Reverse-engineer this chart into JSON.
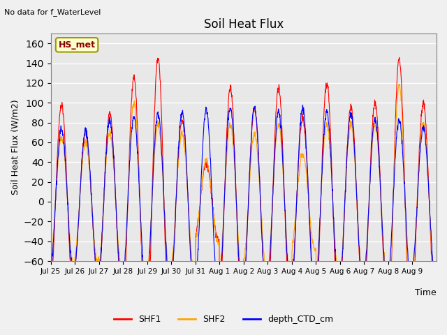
{
  "title": "Soil Heat Flux",
  "xlabel": "Time",
  "ylabel": "Soil Heat Flux (W/m2)",
  "top_left_text": "No data for f_WaterLevel",
  "legend_box_text": "HS_met",
  "ylim": [
    -60,
    170
  ],
  "yticks": [
    -60,
    -40,
    -20,
    0,
    20,
    40,
    60,
    80,
    100,
    120,
    140,
    160
  ],
  "series": [
    "SHF1",
    "SHF2",
    "depth_CTD_cm"
  ],
  "colors": [
    "red",
    "orange",
    "blue"
  ],
  "background_color": "#f0f0f0",
  "plot_bg_color": "#e8e8e8",
  "legend_box_bg": "#ffffcc",
  "legend_box_border": "#999900",
  "n_days": 16,
  "xtick_labels": [
    "Jul 25",
    "Jul 26",
    "Jul 27",
    "Jul 28",
    "Jul 29",
    "Jul 30",
    "Jul 31",
    "Aug 1",
    "Aug 2",
    "Aug 3",
    "Aug 4",
    "Aug 5",
    "Aug 6",
    "Aug 7",
    "Aug 8",
    "Aug 9"
  ],
  "shf1_day_amps": [
    98,
    70,
    90,
    125,
    145,
    82,
    38,
    115,
    95,
    115,
    85,
    120,
    95,
    100,
    145,
    100
  ],
  "shf2_day_amps": [
    65,
    60,
    70,
    100,
    78,
    70,
    42,
    78,
    68,
    78,
    48,
    78,
    78,
    78,
    118,
    80
  ],
  "depth_day_amps": [
    73,
    72,
    82,
    85,
    89,
    91,
    93,
    95,
    95,
    90,
    95,
    90,
    88,
    83,
    83,
    75
  ]
}
